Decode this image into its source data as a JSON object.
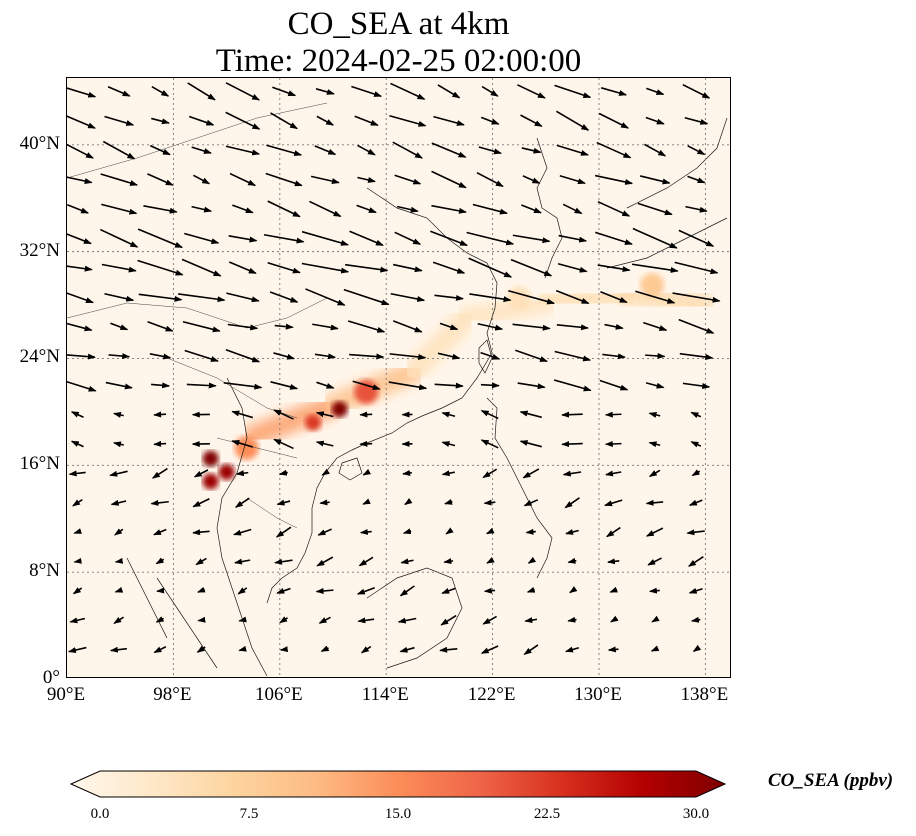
{
  "title_line1": "CO_SEA at 4km",
  "title_line2": "Time: 2024-02-25 02:00:00",
  "chart_data": {
    "type": "heatmap",
    "variable": "CO_SEA",
    "x_axis": {
      "range": [
        90,
        140
      ],
      "ticks": [
        "90°E",
        "98°E",
        "106°E",
        "114°E",
        "122°E",
        "130°E",
        "138°E"
      ],
      "tick_values": [
        90,
        98,
        106,
        114,
        122,
        130,
        138
      ]
    },
    "y_axis": {
      "range": [
        0,
        45
      ],
      "ticks": [
        "0°",
        "8°N",
        "16°N",
        "24°N",
        "32°N",
        "40°N"
      ],
      "tick_values": [
        0,
        8,
        16,
        24,
        32,
        40
      ]
    },
    "grid": true,
    "colormap": "OrRd",
    "colorbar": {
      "label": "CO_SEA (ppbv)",
      "min": 0.0,
      "max": 30.0,
      "ticks": [
        "0.0",
        "7.5",
        "15.0",
        "22.5",
        "30.0"
      ],
      "tick_values": [
        0,
        7.5,
        15,
        22.5,
        30
      ],
      "colors": [
        "#fff7ec",
        "#fee8c8",
        "#fdd49e",
        "#fdbb84",
        "#fc8d59",
        "#ef6548",
        "#d7301f",
        "#b30000",
        "#7f0000"
      ],
      "extend": "both"
    },
    "hotspots": [
      {
        "lon": 100.8,
        "lat": 16.5,
        "value": 30
      },
      {
        "lon": 102.0,
        "lat": 15.5,
        "value": 28
      },
      {
        "lon": 100.8,
        "lat": 14.8,
        "value": 28
      },
      {
        "lon": 110.5,
        "lat": 20.2,
        "value": 30
      },
      {
        "lon": 108.5,
        "lat": 19.2,
        "value": 22
      },
      {
        "lon": 112.5,
        "lat": 21.5,
        "value": 20
      },
      {
        "lon": 103.5,
        "lat": 17.3,
        "value": 15
      },
      {
        "lon": 134.0,
        "lat": 29.5,
        "value": 9
      },
      {
        "lon": 124.0,
        "lat": 28.5,
        "value": 5
      }
    ],
    "plume_band": [
      {
        "lon": 104,
        "lat": 18.2,
        "value": 12
      },
      {
        "lon": 110,
        "lat": 20.5,
        "value": 15
      },
      {
        "lon": 116,
        "lat": 23.0,
        "value": 6
      },
      {
        "lon": 120,
        "lat": 27.0,
        "value": 4
      },
      {
        "lon": 126,
        "lat": 28.2,
        "value": 5
      },
      {
        "lon": 132,
        "lat": 28.8,
        "value": 6
      },
      {
        "lon": 138,
        "lat": 28.0,
        "value": 6
      }
    ],
    "wind_field_vectors": "westerly flow north of ~20°N, northeasterly trades south of ~20°N"
  }
}
